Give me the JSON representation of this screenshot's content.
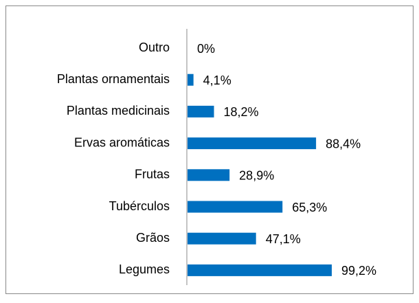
{
  "chart_data": {
    "type": "bar",
    "orientation": "horizontal",
    "categories": [
      "Outro",
      "Plantas ornamentais",
      "Plantas medicinais",
      "Ervas aromáticas",
      "Frutas",
      "Tubérculos",
      "Grãos",
      "Legumes"
    ],
    "values": [
      0,
      4.1,
      18.2,
      88.4,
      28.9,
      65.3,
      47.1,
      99.2
    ],
    "value_labels": [
      "0%",
      "4,1%",
      "18,2%",
      "88,4%",
      "28,9%",
      "65,3%",
      "47,1%",
      "99,2%"
    ],
    "color": "#0070c0"
  }
}
